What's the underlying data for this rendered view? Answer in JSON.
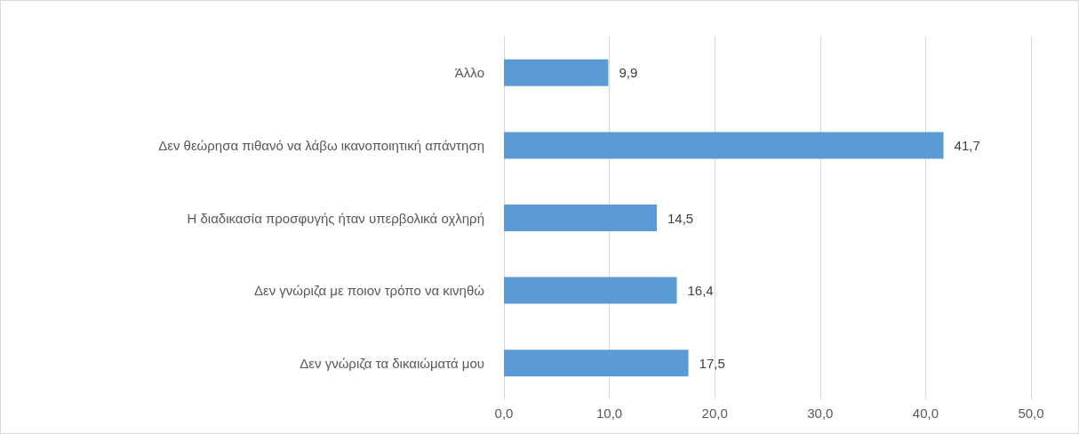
{
  "chart_data": {
    "type": "bar",
    "orientation": "horizontal",
    "categories": [
      "Άλλο",
      "Δεν θεώρησα πιθανό να λάβω ικανοποιητική απάντηση",
      "Η διαδικασία προσφυγής ήταν υπερβολικά οχληρή",
      "Δεν γνώριζα με ποιον τρόπο να κινηθώ",
      "Δεν γνώριζα τα δικαιώματά μου"
    ],
    "values": [
      9.9,
      41.7,
      14.5,
      16.4,
      17.5
    ],
    "value_labels": [
      "9,9",
      "41,7",
      "14,5",
      "16,4",
      "17,5"
    ],
    "color": "#5b9bd5",
    "xlim": [
      0,
      50
    ],
    "xticks": [
      {
        "value": 0,
        "label": "0,0"
      },
      {
        "value": 10,
        "label": "10,0"
      },
      {
        "value": 20,
        "label": "20,0"
      },
      {
        "value": 30,
        "label": "30,0"
      },
      {
        "value": 40,
        "label": "40,0"
      },
      {
        "value": 50,
        "label": "50,0"
      }
    ],
    "grid": "x"
  }
}
